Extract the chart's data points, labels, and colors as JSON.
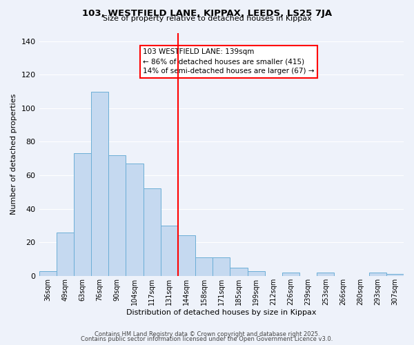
{
  "title": "103, WESTFIELD LANE, KIPPAX, LEEDS, LS25 7JA",
  "subtitle": "Size of property relative to detached houses in Kippax",
  "xlabel": "Distribution of detached houses by size in Kippax",
  "ylabel": "Number of detached properties",
  "bar_color": "#c5d9f0",
  "bar_edge_color": "#6baed6",
  "background_color": "#eef2fa",
  "grid_color": "#ffffff",
  "categories": [
    "36sqm",
    "49sqm",
    "63sqm",
    "76sqm",
    "90sqm",
    "104sqm",
    "117sqm",
    "131sqm",
    "144sqm",
    "158sqm",
    "171sqm",
    "185sqm",
    "199sqm",
    "212sqm",
    "226sqm",
    "239sqm",
    "253sqm",
    "266sqm",
    "280sqm",
    "293sqm",
    "307sqm"
  ],
  "values": [
    3,
    26,
    73,
    110,
    72,
    67,
    52,
    30,
    24,
    11,
    11,
    5,
    3,
    0,
    2,
    0,
    2,
    0,
    0,
    2,
    1
  ],
  "ylim": [
    0,
    145
  ],
  "yticks": [
    0,
    20,
    40,
    60,
    80,
    100,
    120,
    140
  ],
  "red_line_index": 8,
  "annotation_text": "103 WESTFIELD LANE: 139sqm\n← 86% of detached houses are smaller (415)\n14% of semi-detached houses are larger (67) →",
  "footer1": "Contains HM Land Registry data © Crown copyright and database right 2025.",
  "footer2": "Contains public sector information licensed under the Open Government Licence v3.0."
}
